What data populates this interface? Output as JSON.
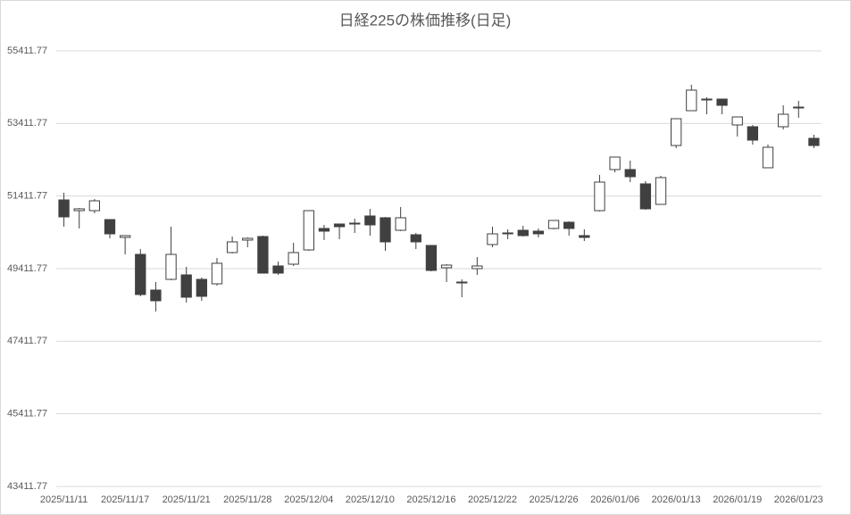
{
  "chart_data": {
    "type": "candlestick",
    "title": "日経225の株価推移(日足)",
    "categories": [
      "2025/11/11",
      null,
      null,
      null,
      "2025/11/17",
      null,
      null,
      null,
      "2025/11/21",
      null,
      null,
      null,
      "2025/11/28",
      null,
      null,
      null,
      "2025/12/04",
      null,
      null,
      null,
      "2025/12/10",
      null,
      null,
      null,
      "2025/12/16",
      null,
      null,
      null,
      "2025/12/22",
      null,
      null,
      null,
      "2025/12/26",
      null,
      null,
      null,
      "2026/01/06",
      null,
      null,
      null,
      "2026/01/13",
      null,
      null,
      null,
      "2026/01/19",
      null,
      null,
      null,
      "2026/01/23",
      null
    ],
    "open": [
      51305,
      51010,
      51010,
      50764,
      50273,
      49805,
      48822,
      49117,
      49240,
      49117,
      48994,
      49855,
      50199,
      50297,
      49486,
      49535,
      49928,
      50519,
      50642,
      50666,
      50863,
      50814,
      50469,
      50346,
      50051,
      49437,
      49043,
      49412,
      50076,
      50371,
      50469,
      50445,
      50519,
      50691,
      50322,
      51010,
      52142,
      52142,
      51748,
      51183,
      52805,
      53764,
      54060,
      54084,
      53371,
      53322,
      52191,
      53322,
      53838,
      53002
    ],
    "high": [
      51502,
      51084,
      51330,
      50764,
      50322,
      49953,
      49043,
      50568,
      49461,
      49166,
      49707,
      50297,
      50273,
      50322,
      49609,
      50125,
      51010,
      50617,
      50642,
      50789,
      51060,
      50838,
      51109,
      50396,
      50051,
      49535,
      49117,
      49732,
      50568,
      50494,
      50592,
      50519,
      50740,
      50715,
      50494,
      51994,
      52486,
      52387,
      51822,
      51969,
      53543,
      54478,
      54133,
      54084,
      53592,
      53371,
      52830,
      53912,
      54035,
      53101
    ],
    "low": [
      50568,
      50519,
      50937,
      50248,
      49805,
      48650,
      48232,
      49092,
      48478,
      48527,
      48945,
      49830,
      50002,
      49289,
      49240,
      49486,
      49904,
      50199,
      50224,
      50396,
      50322,
      49904,
      50445,
      49953,
      49338,
      49043,
      48625,
      49240,
      50002,
      50224,
      50297,
      50273,
      50494,
      50322,
      50174,
      50986,
      52068,
      51797,
      51035,
      51183,
      52732,
      53764,
      53666,
      53666,
      53051,
      52830,
      52191,
      53248,
      53568,
      52732
    ],
    "close": [
      50838,
      51060,
      51281,
      50371,
      50322,
      48699,
      48527,
      49805,
      48625,
      48650,
      49560,
      50150,
      50248,
      49289,
      49289,
      49855,
      51010,
      50445,
      50568,
      50642,
      50617,
      50150,
      50814,
      50150,
      49363,
      49510,
      49019,
      49486,
      50371,
      50396,
      50322,
      50371,
      50740,
      50519,
      50273,
      51797,
      52486,
      51945,
      51060,
      51920,
      53543,
      54330,
      54084,
      53912,
      53592,
      52953,
      52756,
      53666,
      53863,
      52805
    ],
    "up_color": "#ffffff",
    "down_color": "#404040",
    "line_color": "#404040",
    "ylim": [
      43411.77,
      55411.77
    ],
    "yticks": [
      43411.77,
      45411.77,
      47411.77,
      49411.77,
      51411.77,
      53411.77,
      55411.77
    ],
    "grid": true
  }
}
